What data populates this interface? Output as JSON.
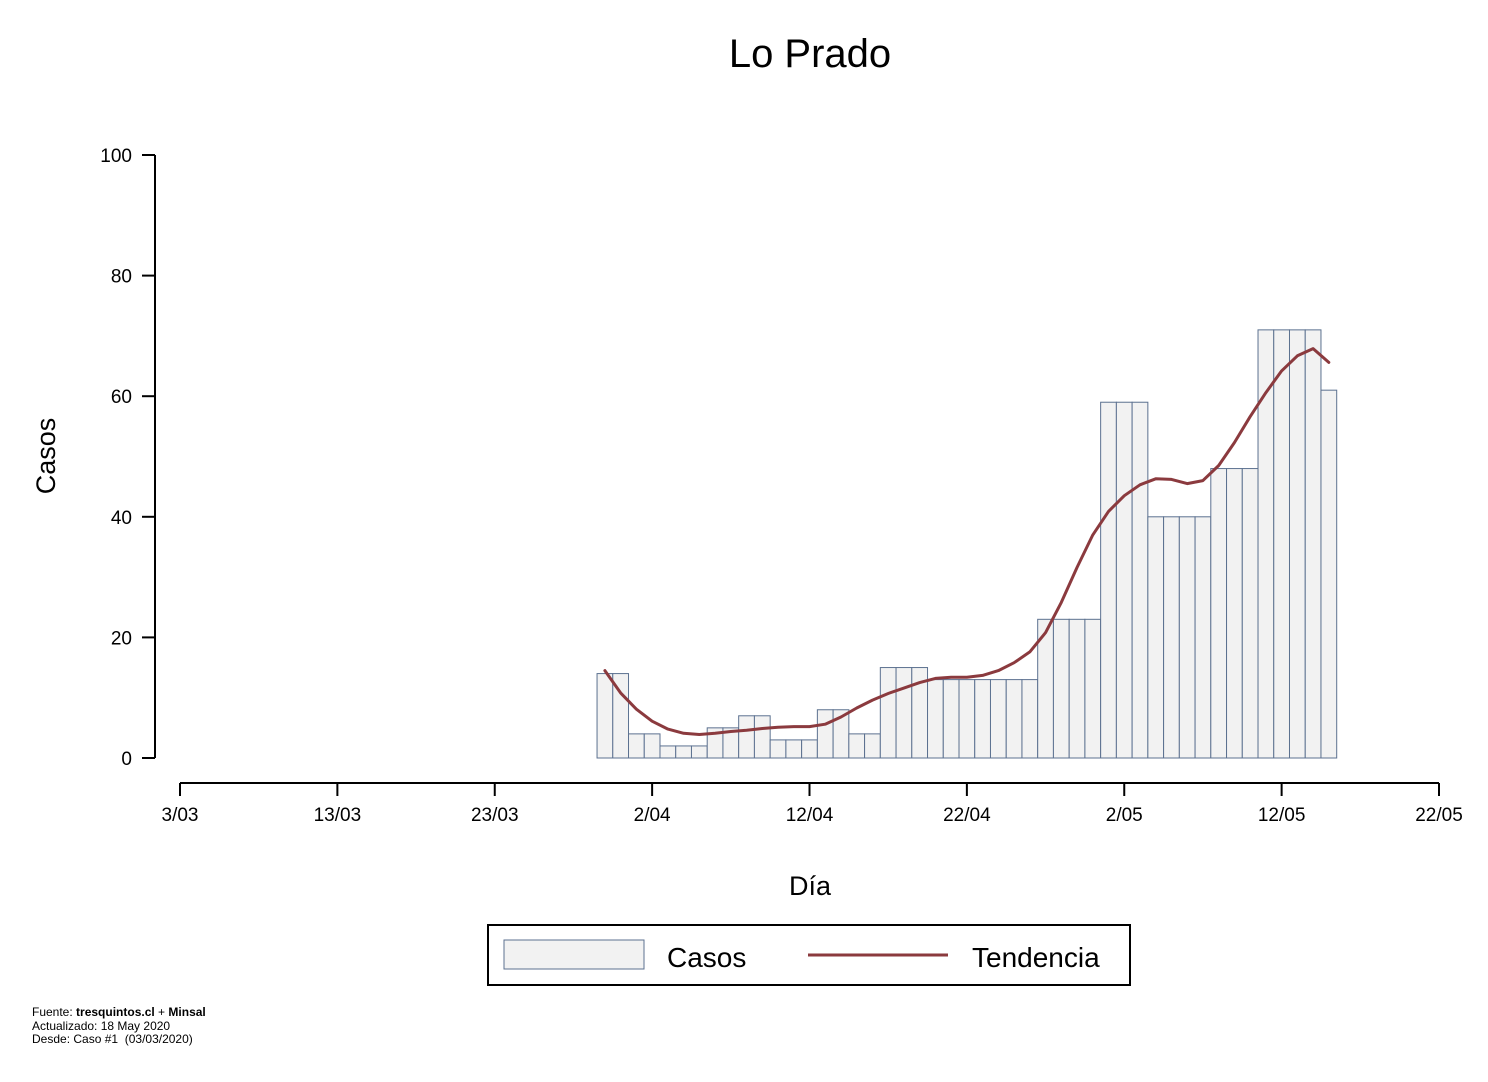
{
  "chart_data": {
    "type": "bar",
    "title": "Lo Prado",
    "xlabel": "Día",
    "ylabel": "Casos",
    "ylim": [
      0,
      100
    ],
    "y_ticks": [
      "0",
      "20",
      "40",
      "60",
      "80",
      "100"
    ],
    "x_ticks": [
      "3/03",
      "13/03",
      "23/03",
      "2/04",
      "12/04",
      "22/04",
      "2/05",
      "12/05",
      "22/05"
    ],
    "x_range": [
      "2020-03-03",
      "2020-05-22"
    ],
    "grid": false,
    "legend_position": "bottom",
    "categories": [
      "2020-03-30",
      "2020-03-31",
      "2020-04-01",
      "2020-04-02",
      "2020-04-03",
      "2020-04-04",
      "2020-04-05",
      "2020-04-06",
      "2020-04-07",
      "2020-04-08",
      "2020-04-09",
      "2020-04-10",
      "2020-04-11",
      "2020-04-12",
      "2020-04-13",
      "2020-04-14",
      "2020-04-15",
      "2020-04-16",
      "2020-04-17",
      "2020-04-18",
      "2020-04-19",
      "2020-04-20",
      "2020-04-21",
      "2020-04-22",
      "2020-04-23",
      "2020-04-24",
      "2020-04-25",
      "2020-04-26",
      "2020-04-27",
      "2020-04-28",
      "2020-04-29",
      "2020-04-30",
      "2020-05-01",
      "2020-05-02",
      "2020-05-03",
      "2020-05-04",
      "2020-05-05",
      "2020-05-06",
      "2020-05-07",
      "2020-05-08",
      "2020-05-09",
      "2020-05-10",
      "2020-05-11",
      "2020-05-12",
      "2020-05-13",
      "2020-05-14",
      "2020-05-15"
    ],
    "series": [
      {
        "name": "Casos",
        "type": "bar",
        "color": "#f2f2f2",
        "edge_color": "#5c7190",
        "values": [
          14,
          14,
          4,
          4,
          2,
          2,
          2,
          5,
          5,
          7,
          7,
          3,
          3,
          3,
          8,
          8,
          4,
          4,
          15,
          15,
          15,
          13,
          13,
          13,
          13,
          13,
          13,
          13,
          23,
          23,
          23,
          23,
          59,
          59,
          59,
          40,
          40,
          40,
          40,
          48,
          48,
          48,
          71,
          71,
          71,
          71,
          61
        ]
      },
      {
        "name": "Tendencia",
        "type": "line",
        "color": "#8b3a3e",
        "x": [
          "2020-03-30",
          "2020-03-31",
          "2020-04-01",
          "2020-04-02",
          "2020-04-03",
          "2020-04-04",
          "2020-04-05",
          "2020-04-06",
          "2020-04-07",
          "2020-04-08",
          "2020-04-09",
          "2020-04-10",
          "2020-04-11",
          "2020-04-12",
          "2020-04-13",
          "2020-04-14",
          "2020-04-15",
          "2020-04-16",
          "2020-04-17",
          "2020-04-18",
          "2020-04-19",
          "2020-04-20",
          "2020-04-21",
          "2020-04-22",
          "2020-04-23",
          "2020-04-24",
          "2020-04-25",
          "2020-04-26",
          "2020-04-27",
          "2020-04-28",
          "2020-04-29",
          "2020-04-30",
          "2020-05-01",
          "2020-05-02",
          "2020-05-03",
          "2020-05-04",
          "2020-05-05",
          "2020-05-06",
          "2020-05-07",
          "2020-05-08",
          "2020-05-09",
          "2020-05-10",
          "2020-05-11",
          "2020-05-12",
          "2020-05-13",
          "2020-05-14",
          "2020-05-15"
        ],
        "values": [
          14.5,
          10.8,
          8.1,
          6.1,
          4.8,
          4.1,
          3.9,
          4.1,
          4.4,
          4.6,
          4.9,
          5.1,
          5.2,
          5.2,
          5.6,
          6.8,
          8.3,
          9.6,
          10.7,
          11.6,
          12.5,
          13.2,
          13.4,
          13.4,
          13.7,
          14.5,
          15.8,
          17.6,
          20.8,
          25.8,
          31.6,
          37.0,
          40.9,
          43.5,
          45.3,
          46.3,
          46.2,
          45.5,
          46.0,
          48.5,
          52.3,
          56.6,
          60.6,
          64.2,
          66.7,
          67.9,
          65.6
        ]
      }
    ]
  },
  "legend": {
    "casos_label": "Casos",
    "tendencia_label": "Tendencia"
  },
  "footer": {
    "fuente_prefix": "Fuente: ",
    "fuente_site": "tresquintos.cl",
    "fuente_sep": " + ",
    "fuente_source": "Minsal",
    "updated": "Actualizado: 18 May 2020",
    "since": "Desde: Caso #1  (03/03/2020)"
  }
}
